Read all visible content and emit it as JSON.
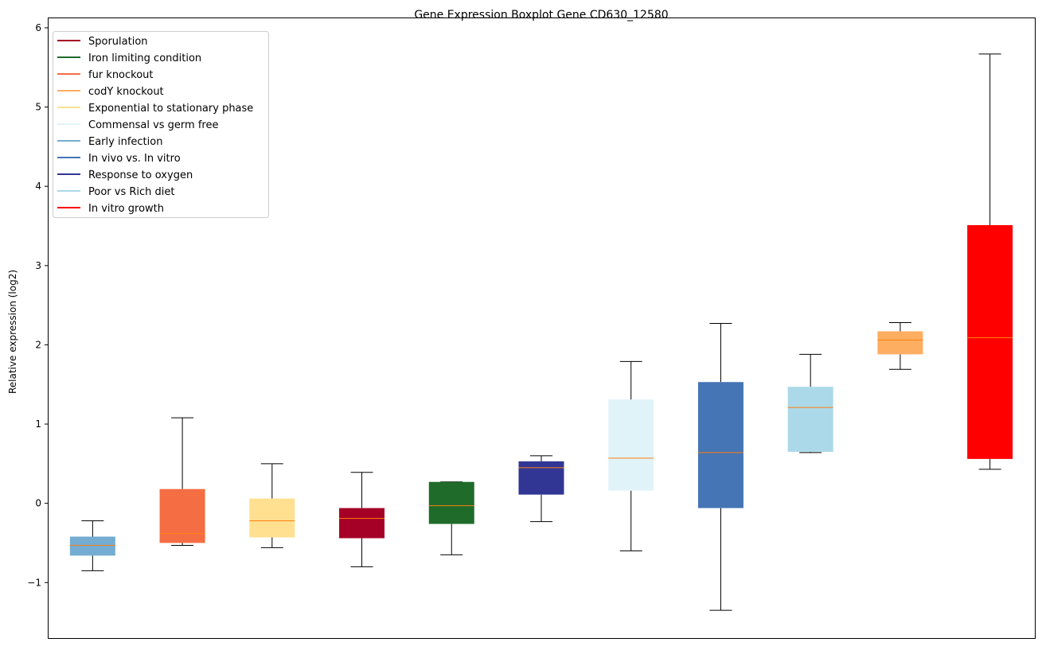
{
  "chart_data": {
    "type": "boxplot",
    "title": "Gene Expression Boxplot Gene CD630_12580",
    "xlabel": "",
    "ylabel": "Relative expression (log2)",
    "ylim": [
      -1.7,
      6.13
    ],
    "yticks": [
      -1,
      0,
      1,
      2,
      3,
      4,
      5,
      6
    ],
    "ytick_labels": [
      "−1",
      "0",
      "1",
      "2",
      "3",
      "4",
      "5",
      "6"
    ],
    "grid": false,
    "legend_placement": "top-left",
    "median_color": "#ff7f0e",
    "legend": [
      {
        "label": "Sporulation",
        "color": "#a50026"
      },
      {
        "label": "Iron limiting condition",
        "color": "#1f6b2a"
      },
      {
        "label": "fur knockout",
        "color": "#f46d43"
      },
      {
        "label": "codY knockout",
        "color": "#fdae61"
      },
      {
        "label": "Exponential to stationary phase",
        "color": "#fee090"
      },
      {
        "label": "Commensal vs germ free",
        "color": "#e0f3f8"
      },
      {
        "label": "Early infection",
        "color": "#74add1"
      },
      {
        "label": "In vivo vs. In vitro",
        "color": "#4575b4"
      },
      {
        "label": "Response to oxygen",
        "color": "#313695"
      },
      {
        "label": "Poor vs Rich diet",
        "color": "#abd9e9"
      },
      {
        "label": "In vitro growth",
        "color": "#ff0000"
      }
    ],
    "boxes": [
      {
        "name": "Early infection",
        "color": "#74add1",
        "whislo": -0.85,
        "q1": -0.66,
        "med": -0.53,
        "q3": -0.42,
        "whishi": -0.22
      },
      {
        "name": "fur knockout",
        "color": "#f46d43",
        "whislo": -0.53,
        "q1": -0.5,
        "med": -0.38,
        "q3": 0.18,
        "whishi": 1.08
      },
      {
        "name": "Exponential to stationary phase",
        "color": "#fee090",
        "whislo": -0.56,
        "q1": -0.43,
        "med": -0.22,
        "q3": 0.06,
        "whishi": 0.5
      },
      {
        "name": "Sporulation",
        "color": "#a50026",
        "whislo": -0.8,
        "q1": -0.44,
        "med": -0.19,
        "q3": -0.06,
        "whishi": 0.39
      },
      {
        "name": "Iron limiting condition",
        "color": "#1f6b2a",
        "whislo": -0.65,
        "q1": -0.26,
        "med": -0.03,
        "q3": 0.27,
        "whishi": 0.27
      },
      {
        "name": "Response to oxygen",
        "color": "#313695",
        "whislo": -0.23,
        "q1": 0.11,
        "med": 0.45,
        "q3": 0.53,
        "whishi": 0.6
      },
      {
        "name": "Commensal vs germ free",
        "color": "#e0f3f8",
        "whislo": -0.6,
        "q1": 0.16,
        "med": 0.57,
        "q3": 1.31,
        "whishi": 1.79
      },
      {
        "name": "In vivo vs. In vitro",
        "color": "#4575b4",
        "whislo": -1.35,
        "q1": -0.06,
        "med": 0.64,
        "q3": 1.53,
        "whishi": 2.27
      },
      {
        "name": "Poor vs Rich diet",
        "color": "#abd9e9",
        "whislo": 0.64,
        "q1": 0.65,
        "med": 1.21,
        "q3": 1.47,
        "whishi": 1.88
      },
      {
        "name": "codY knockout",
        "color": "#fdae61",
        "whislo": 1.69,
        "q1": 1.88,
        "med": 2.06,
        "q3": 2.17,
        "whishi": 2.28
      },
      {
        "name": "In vitro growth",
        "color": "#ff0000",
        "whislo": 0.43,
        "q1": 0.56,
        "med": 2.09,
        "q3": 3.51,
        "whishi": 5.67
      }
    ]
  }
}
